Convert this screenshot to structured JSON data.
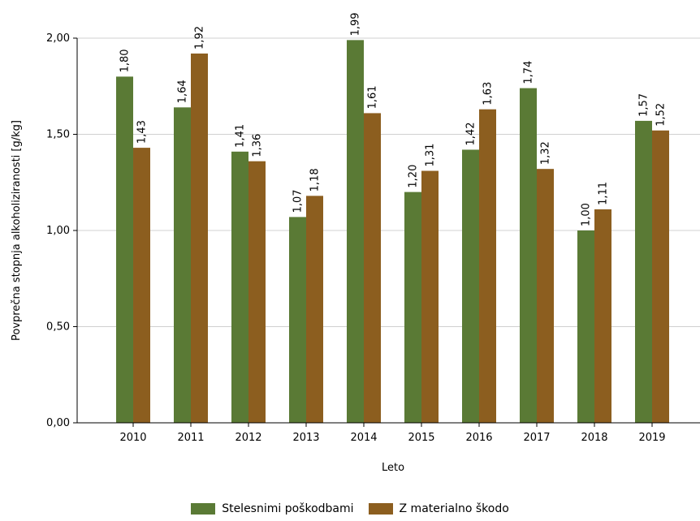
{
  "chart_data": {
    "type": "bar",
    "categories": [
      "2010",
      "2011",
      "2012",
      "2013",
      "2014",
      "2015",
      "2016",
      "2017",
      "2018",
      "2019"
    ],
    "series": [
      {
        "name": "Stelesnimi poškodbami",
        "color": "#5a7a35",
        "values": [
          1.8,
          1.64,
          1.41,
          1.07,
          1.99,
          1.2,
          1.42,
          1.74,
          1.0,
          1.57
        ],
        "labels": [
          "1,80",
          "1,64",
          "1,41",
          "1,07",
          "1,99",
          "1,20",
          "1,42",
          "1,74",
          "1,00",
          "1,57"
        ]
      },
      {
        "name": "Z materialno škodo",
        "color": "#8c5e1f",
        "values": [
          1.43,
          1.92,
          1.36,
          1.18,
          1.61,
          1.31,
          1.63,
          1.32,
          1.11,
          1.52
        ],
        "labels": [
          "1,43",
          "1,92",
          "1,36",
          "1,18",
          "1,61",
          "1,31",
          "1,63",
          "1,32",
          "1,11",
          "1,52"
        ]
      }
    ],
    "xlabel": "Leto",
    "ylabel": "Povprečna stopnja alkoholiziranosti [g/kg]",
    "ylim": [
      0,
      2.0
    ],
    "yticks": [
      0,
      0.5,
      1.0,
      1.5,
      2.0
    ],
    "ytick_labels": [
      "0,00",
      "0,50",
      "1,00",
      "1,50",
      "2,00"
    ],
    "grid": true,
    "legend_position": "bottom"
  }
}
